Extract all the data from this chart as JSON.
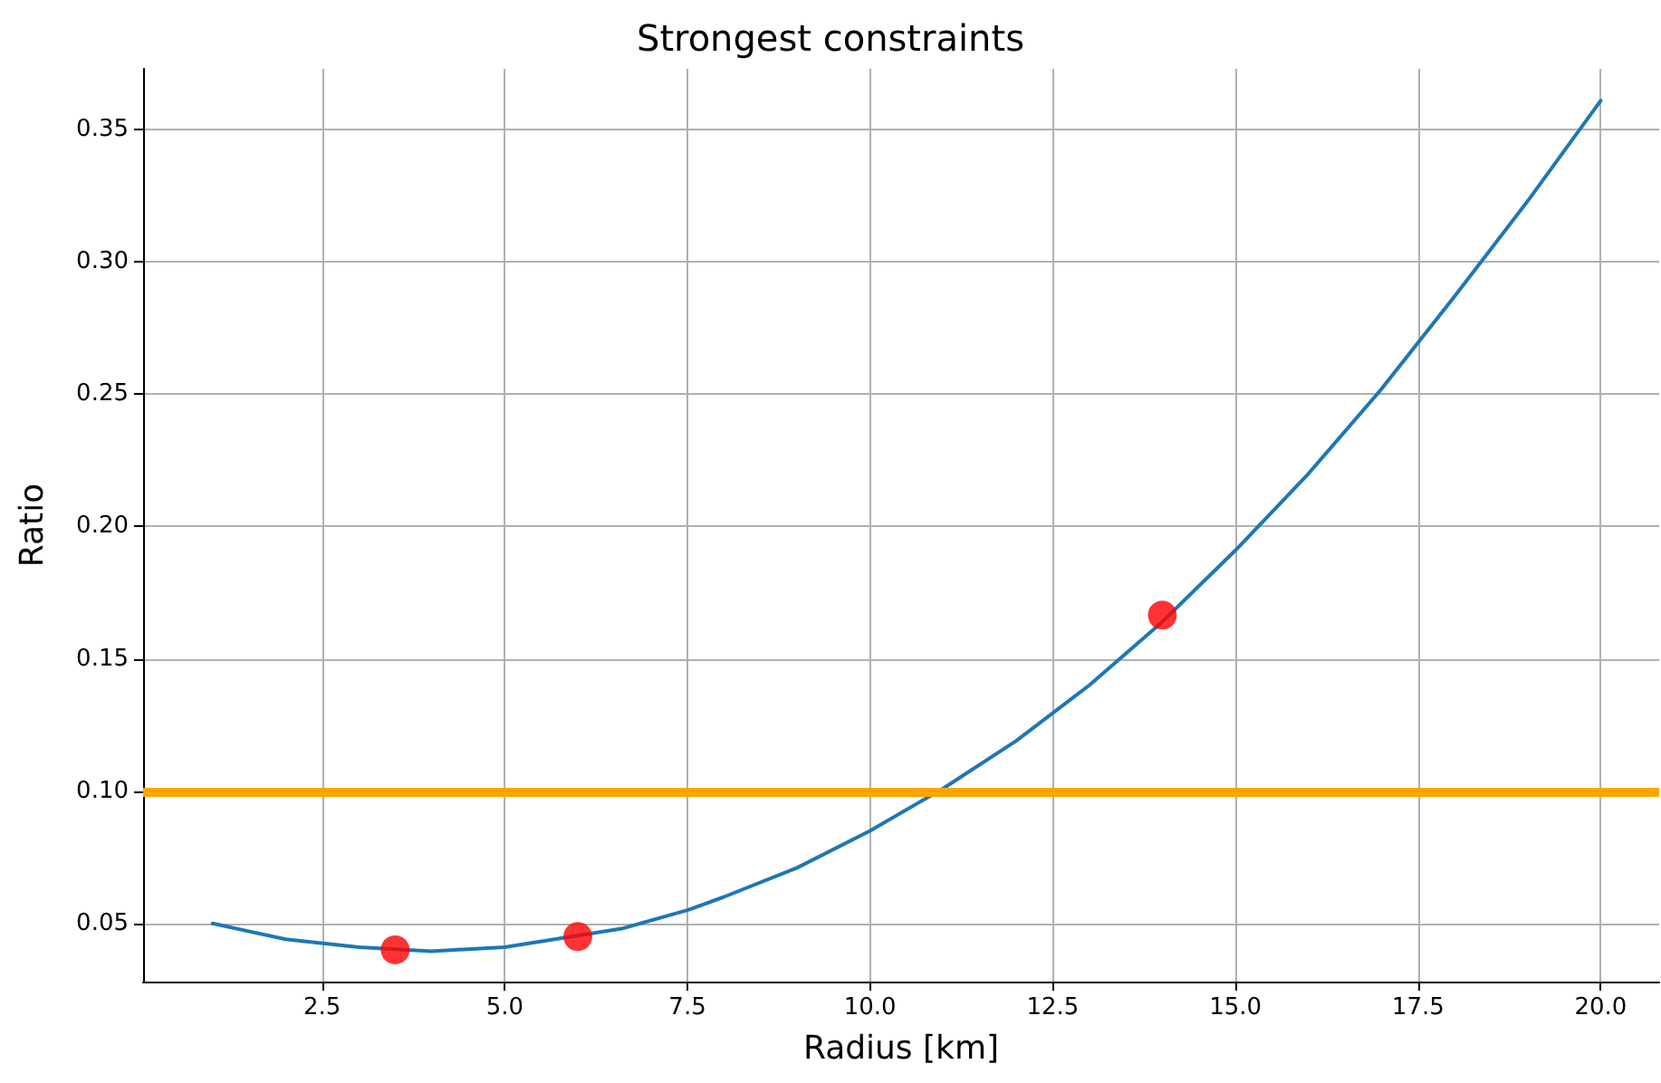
{
  "chart_data": {
    "type": "line",
    "title": "Strongest constraints",
    "xlabel": "Radius [km]",
    "ylabel": "Ratio",
    "xlim": [
      0.05,
      20.8
    ],
    "ylim": [
      0.028,
      0.373
    ],
    "xticks": [
      2.5,
      {
        "value": 5,
        "label": "5.0"
      },
      7.5,
      {
        "value": 10,
        "label": "10.0"
      },
      12.5,
      {
        "value": 15,
        "label": "15.0"
      },
      17.5,
      {
        "value": 20,
        "label": "20.0"
      }
    ],
    "yticks": [
      0.05,
      {
        "value": 0.1,
        "label": "0.10"
      },
      0.15,
      {
        "value": 0.2,
        "label": "0.20"
      },
      0.25,
      {
        "value": 0.3,
        "label": "0.30"
      },
      0.35
    ],
    "grid": true,
    "series": [
      {
        "type": "line",
        "color": "#1f77b4",
        "marker": "none",
        "line_style": "solid",
        "x": [
          1,
          2,
          3,
          4,
          5,
          6.6,
          7.5,
          8,
          9,
          10,
          11,
          12,
          13,
          14,
          15,
          16,
          17,
          18,
          19,
          20
        ],
        "values": [
          0.05,
          0.044,
          0.041,
          0.0395,
          0.041,
          0.048,
          0.055,
          0.06,
          0.071,
          0.085,
          0.101,
          0.119,
          0.14,
          0.164,
          0.191,
          0.22,
          0.252,
          0.287,
          0.323,
          0.361
        ]
      },
      {
        "type": "scatter",
        "color": "#ff0000",
        "marker": "circle",
        "x": [
          3.5,
          6,
          14
        ],
        "values": [
          0.04,
          0.045,
          0.1665
        ]
      }
    ],
    "ref_lines": [
      {
        "axis": "y",
        "value": 0.1,
        "color": "#ffa500",
        "line_style": "solid"
      }
    ]
  }
}
